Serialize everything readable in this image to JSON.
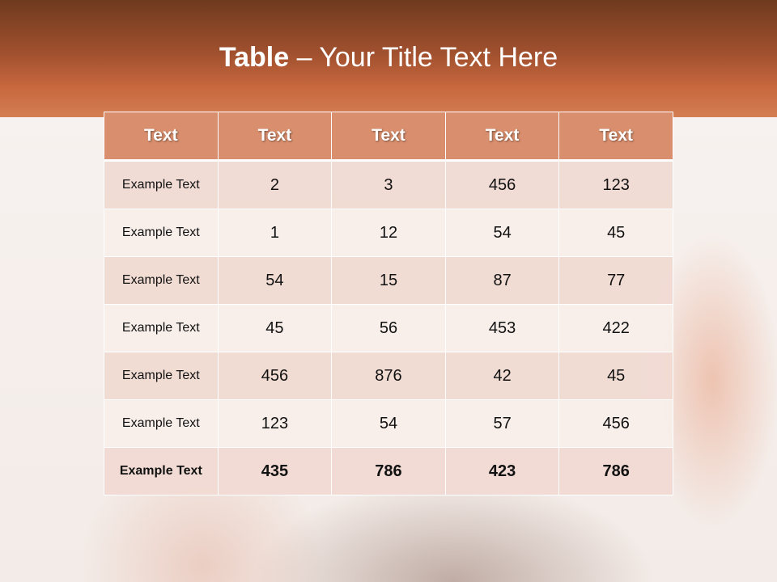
{
  "slide": {
    "title_bold": "Table",
    "title_rest": " – Your Title Text Here",
    "colors": {
      "banner": "#b45a33",
      "header": "#d98f6e",
      "row_dark": "#f0dad3",
      "row_light": "#f8eeea"
    }
  },
  "table": {
    "headers": [
      "Text",
      "Text",
      "Text",
      "Text",
      "Text"
    ],
    "rows": [
      [
        "Example Text",
        "2",
        "3",
        "456",
        "123"
      ],
      [
        "Example Text",
        "1",
        "12",
        "54",
        "45"
      ],
      [
        "Example Text",
        "54",
        "15",
        "87",
        "77"
      ],
      [
        "Example Text",
        "45",
        "56",
        "453",
        "422"
      ],
      [
        "Example Text",
        "456",
        "876",
        "42",
        "45"
      ],
      [
        "Example Text",
        "123",
        "54",
        "57",
        "456"
      ],
      [
        "Example Text",
        "435",
        "786",
        "423",
        "786"
      ]
    ]
  }
}
